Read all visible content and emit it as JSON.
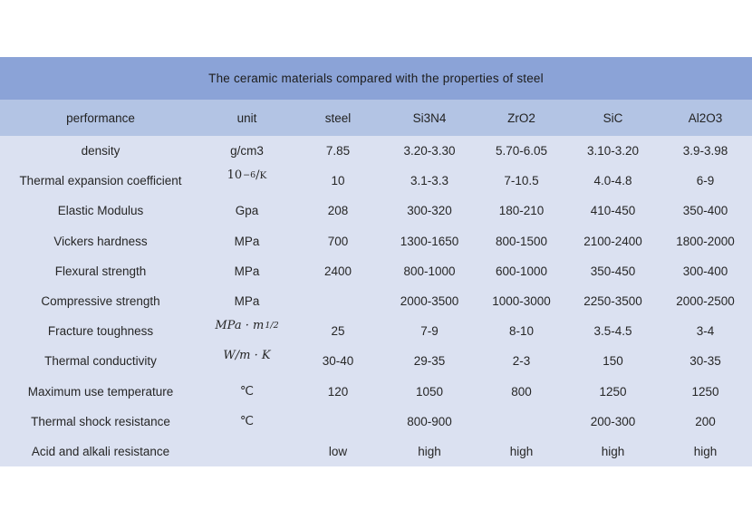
{
  "table": {
    "title": "The ceramic materials compared with the properties of steel",
    "columns": [
      "performance",
      "unit",
      "steel",
      "Si3N4",
      "ZrO2",
      "SiC",
      "Al2O3"
    ],
    "rows": [
      {
        "performance": "density",
        "unit": {
          "text": "g/cm3"
        },
        "values": [
          "7.85",
          "3.20-3.30",
          "5.70-6.05",
          "3.10-3.20",
          "3.9-3.98"
        ]
      },
      {
        "performance": "Thermal expansion coefficient",
        "unit": {
          "math": true,
          "base": "10",
          "sup": "−6",
          "tail": "/",
          "tailSmall": "K"
        },
        "values": [
          "10",
          "3.1-3.3",
          "7-10.5",
          "4.0-4.8",
          "6-9"
        ]
      },
      {
        "performance": "Elastic Modulus",
        "unit": {
          "text": "Gpa"
        },
        "values": [
          "208",
          "300-320",
          "180-210",
          "410-450",
          "350-400"
        ]
      },
      {
        "performance": "Vickers hardness",
        "unit": {
          "text": "MPa"
        },
        "values": [
          "700",
          "1300-1650",
          "800-1500",
          "2100-2400",
          "1800-2000"
        ]
      },
      {
        "performance": "Flexural strength",
        "unit": {
          "text": "MPa"
        },
        "values": [
          "2400",
          "800-1000",
          "600-1000",
          "350-450",
          "300-400"
        ]
      },
      {
        "performance": "Compressive strength",
        "unit": {
          "text": "MPa"
        },
        "values": [
          "",
          "2000-3500",
          "1000-3000",
          "2250-3500",
          "2000-2500"
        ]
      },
      {
        "performance": "Fracture toughness",
        "unit": {
          "math": true,
          "italic": true,
          "base": "MPa · m",
          "sup": "1/2"
        },
        "values": [
          "25",
          "7-9",
          "8-10",
          "3.5-4.5",
          "3-4"
        ]
      },
      {
        "performance": "Thermal conductivity",
        "unit": {
          "math": true,
          "italic": true,
          "text": "W/m · K"
        },
        "values": [
          "30-40",
          "29-35",
          "2-3",
          "150",
          "30-35"
        ]
      },
      {
        "performance": "Maximum use temperature",
        "unit": {
          "text": "℃"
        },
        "values": [
          "120",
          "1050",
          "800",
          "1250",
          "1250"
        ]
      },
      {
        "performance": "Thermal shock resistance",
        "unit": {
          "text": "℃"
        },
        "values": [
          "",
          "800-900",
          "",
          "200-300",
          "200"
        ]
      },
      {
        "performance": "Acid and alkali resistance",
        "unit": {},
        "values": [
          "low",
          "high",
          "high",
          "high",
          "high"
        ]
      }
    ],
    "colors": {
      "title_bg": "#8BA3D7",
      "header_bg": "#B3C4E4",
      "body_bg": "#DBE1F1",
      "text": "#262626"
    }
  }
}
